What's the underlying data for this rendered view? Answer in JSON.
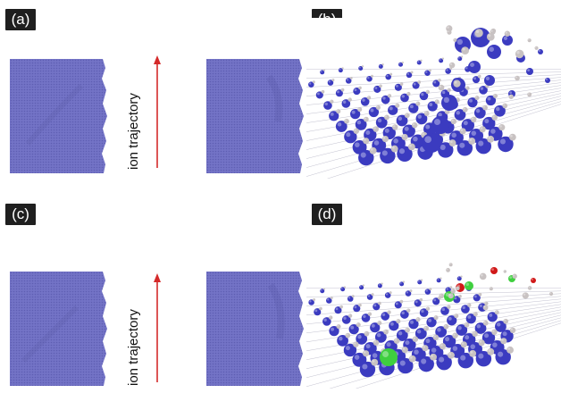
{
  "panels": {
    "a": {
      "label": "(a)"
    },
    "b": {
      "label": "(b)"
    },
    "c": {
      "label": "(c)"
    },
    "d": {
      "label": "(d)"
    }
  },
  "trajectory_label": "ion trajectory",
  "colors": {
    "sheet": "#6f6fc4",
    "sheet_dark": "#5b5bae",
    "atom_blue": "#3b3bc0",
    "atom_gray": "#c8c2c2",
    "atom_green": "#3fcf3f",
    "atom_red": "#d01818",
    "arrow": "#d42a2a"
  },
  "icons": [
    "up-arrow-icon"
  ]
}
